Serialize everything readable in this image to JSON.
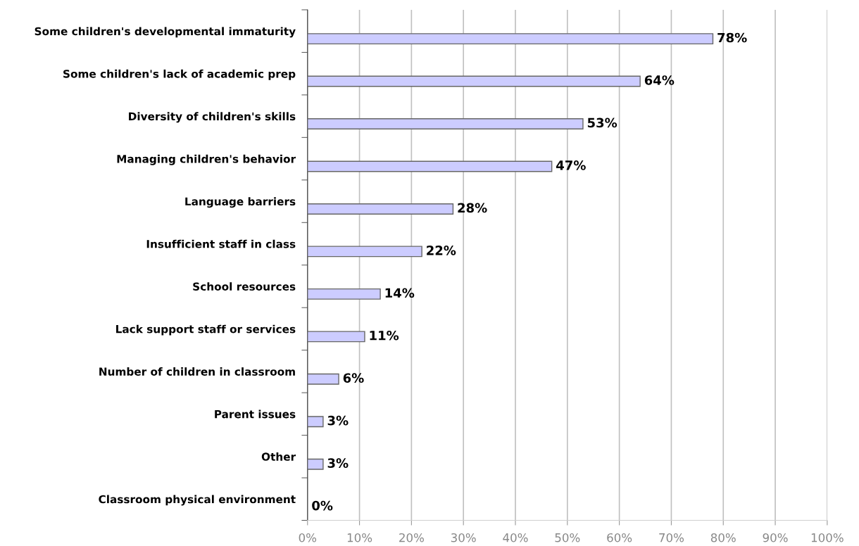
{
  "chart_data": {
    "type": "bar",
    "orientation": "horizontal",
    "categories": [
      "Some children's developmental immaturity",
      "Some children's lack of academic prep",
      "Diversity of children's skills",
      "Managing children's behavior",
      "Language barriers",
      "Insufficient staff in class",
      "School resources",
      "Lack support staff or services",
      "Number of children in classroom",
      "Parent issues",
      "Other",
      "Classroom physical environment"
    ],
    "values": [
      78,
      64,
      53,
      47,
      28,
      22,
      14,
      11,
      6,
      3,
      3,
      0
    ],
    "value_labels": [
      "78%",
      "64%",
      "53%",
      "47%",
      "28%",
      "22%",
      "14%",
      "11%",
      "6%",
      "3%",
      "3%",
      "0%"
    ],
    "color": "#ccccff",
    "xlim": [
      0,
      100
    ],
    "xticks": [
      {
        "value": 0,
        "label": "0%"
      },
      {
        "value": 10,
        "label": "10%"
      },
      {
        "value": 20,
        "label": "20%"
      },
      {
        "value": 30,
        "label": "30%"
      },
      {
        "value": 40,
        "label": "40%"
      },
      {
        "value": 50,
        "label": "50%"
      },
      {
        "value": 60,
        "label": "60%"
      },
      {
        "value": 70,
        "label": "70%"
      },
      {
        "value": 80,
        "label": "80%"
      },
      {
        "value": 90,
        "label": "90%"
      },
      {
        "value": 100,
        "label": "100%"
      }
    ],
    "grid": "x",
    "legend": false
  }
}
